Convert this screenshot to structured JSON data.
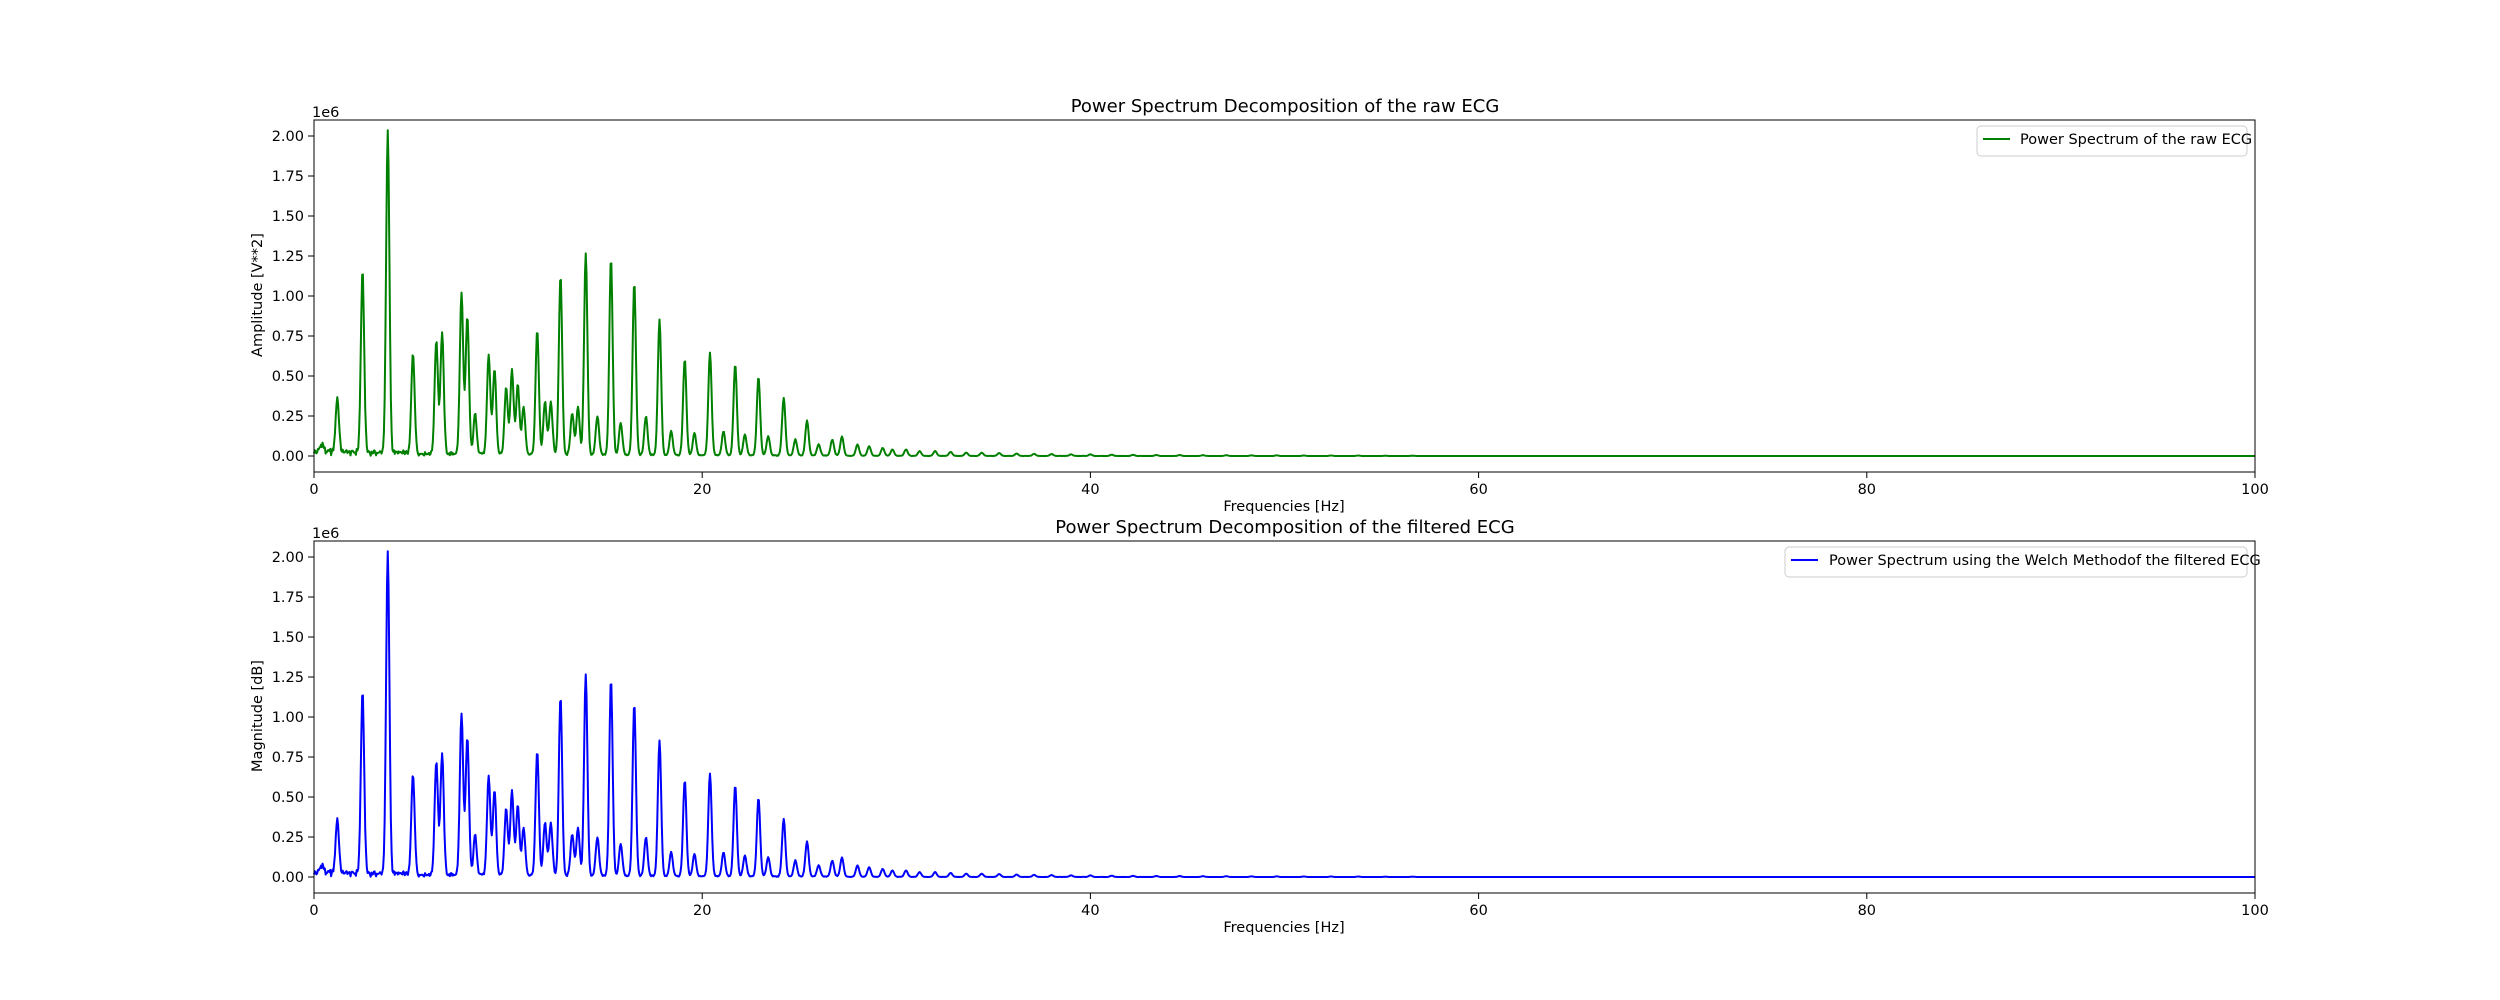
{
  "chart_data": [
    {
      "type": "line",
      "title": "Power Spectrum Decomposition of the raw ECG",
      "xlabel": "Frequencies [Hz]",
      "ylabel": "Amplitude [V**2]",
      "y_offset_label": "1e6",
      "xlim": [
        0,
        100
      ],
      "ylim": [
        -0.1,
        2.1
      ],
      "xticks": [
        0,
        20,
        40,
        60,
        80,
        100
      ],
      "xtick_labels": [
        "0",
        "20",
        "40",
        "60",
        "80",
        "100"
      ],
      "yticks": [
        0,
        0.25,
        0.5,
        0.75,
        1.0,
        1.25,
        1.5,
        1.75,
        2.0
      ],
      "ytick_labels": [
        "0.00",
        "0.25",
        "0.50",
        "0.75",
        "1.00",
        "1.25",
        "1.50",
        "1.75",
        "2.00"
      ],
      "grid": false,
      "legend_position": "top-right",
      "color": "#008000",
      "series": [
        {
          "name": "Power Spectrum of the raw ECG",
          "peaks": [
            [
              0.4,
              0.05
            ],
            [
              1.2,
              0.34
            ],
            [
              2.5,
              1.13
            ],
            [
              3.8,
              2.01
            ],
            [
              5.1,
              0.63
            ],
            [
              6.3,
              0.71
            ],
            [
              6.6,
              0.76
            ],
            [
              7.6,
              1.01
            ],
            [
              7.9,
              0.86
            ],
            [
              8.3,
              0.25
            ],
            [
              9.0,
              0.62
            ],
            [
              9.3,
              0.53
            ],
            [
              9.9,
              0.42
            ],
            [
              10.2,
              0.53
            ],
            [
              10.5,
              0.44
            ],
            [
              10.8,
              0.3
            ],
            [
              11.5,
              0.78
            ],
            [
              11.9,
              0.33
            ],
            [
              12.2,
              0.33
            ],
            [
              12.7,
              1.12
            ],
            [
              13.3,
              0.26
            ],
            [
              13.6,
              0.3
            ],
            [
              14.0,
              1.26
            ],
            [
              14.6,
              0.24
            ],
            [
              15.3,
              1.23
            ],
            [
              15.8,
              0.2
            ],
            [
              16.5,
              1.08
            ],
            [
              17.1,
              0.24
            ],
            [
              17.8,
              0.85
            ],
            [
              18.4,
              0.15
            ],
            [
              19.1,
              0.6
            ],
            [
              19.6,
              0.14
            ],
            [
              20.4,
              0.64
            ],
            [
              21.1,
              0.15
            ],
            [
              21.7,
              0.57
            ],
            [
              22.2,
              0.13
            ],
            [
              22.9,
              0.49
            ],
            [
              23.4,
              0.12
            ],
            [
              24.2,
              0.36
            ],
            [
              24.8,
              0.1
            ],
            [
              25.4,
              0.22
            ],
            [
              26.0,
              0.07
            ],
            [
              26.7,
              0.1
            ],
            [
              27.2,
              0.12
            ],
            [
              28.0,
              0.07
            ],
            [
              28.6,
              0.06
            ],
            [
              29.3,
              0.05
            ],
            [
              29.8,
              0.04
            ],
            [
              30.5,
              0.04
            ],
            [
              31.2,
              0.03
            ],
            [
              32.0,
              0.03
            ],
            [
              32.8,
              0.025
            ],
            [
              33.6,
              0.02
            ],
            [
              34.4,
              0.02
            ],
            [
              35.3,
              0.018
            ],
            [
              36.2,
              0.015
            ],
            [
              37.1,
              0.013
            ],
            [
              38.0,
              0.012
            ],
            [
              39.0,
              0.01
            ],
            [
              40.0,
              0.01
            ],
            [
              41.1,
              0.008
            ],
            [
              42.2,
              0.007
            ],
            [
              43.4,
              0.006
            ],
            [
              44.6,
              0.006
            ],
            [
              45.8,
              0.005
            ],
            [
              47.0,
              0.005
            ],
            [
              48.3,
              0.004
            ],
            [
              49.6,
              0.004
            ],
            [
              51.0,
              0.003
            ],
            [
              52.4,
              0.003
            ],
            [
              53.8,
              0.003
            ],
            [
              55.2,
              0.002
            ],
            [
              56.6,
              0.002
            ]
          ]
        }
      ]
    },
    {
      "type": "line",
      "title": "Power Spectrum Decomposition of the filtered ECG",
      "xlabel": "Frequencies [Hz]",
      "ylabel": "Magnitude  [dB]",
      "y_offset_label": "1e6",
      "xlim": [
        0,
        100
      ],
      "ylim": [
        -0.1,
        2.1
      ],
      "xticks": [
        0,
        20,
        40,
        60,
        80,
        100
      ],
      "xtick_labels": [
        "0",
        "20",
        "40",
        "60",
        "80",
        "100"
      ],
      "yticks": [
        0,
        0.25,
        0.5,
        0.75,
        1.0,
        1.25,
        1.5,
        1.75,
        2.0
      ],
      "ytick_labels": [
        "0.00",
        "0.25",
        "0.50",
        "0.75",
        "1.00",
        "1.25",
        "1.50",
        "1.75",
        "2.00"
      ],
      "grid": false,
      "legend_position": "top-right",
      "color": "#0000ff",
      "series": [
        {
          "name": "Power Spectrum using the Welch Methodof the filtered ECG",
          "peaks": [
            [
              0.4,
              0.05
            ],
            [
              1.2,
              0.34
            ],
            [
              2.5,
              1.13
            ],
            [
              3.8,
              2.01
            ],
            [
              5.1,
              0.63
            ],
            [
              6.3,
              0.71
            ],
            [
              6.6,
              0.76
            ],
            [
              7.6,
              1.01
            ],
            [
              7.9,
              0.86
            ],
            [
              8.3,
              0.25
            ],
            [
              9.0,
              0.62
            ],
            [
              9.3,
              0.53
            ],
            [
              9.9,
              0.42
            ],
            [
              10.2,
              0.53
            ],
            [
              10.5,
              0.44
            ],
            [
              10.8,
              0.3
            ],
            [
              11.5,
              0.78
            ],
            [
              11.9,
              0.33
            ],
            [
              12.2,
              0.33
            ],
            [
              12.7,
              1.12
            ],
            [
              13.3,
              0.26
            ],
            [
              13.6,
              0.3
            ],
            [
              14.0,
              1.26
            ],
            [
              14.6,
              0.24
            ],
            [
              15.3,
              1.23
            ],
            [
              15.8,
              0.2
            ],
            [
              16.5,
              1.08
            ],
            [
              17.1,
              0.24
            ],
            [
              17.8,
              0.85
            ],
            [
              18.4,
              0.15
            ],
            [
              19.1,
              0.6
            ],
            [
              19.6,
              0.14
            ],
            [
              20.4,
              0.64
            ],
            [
              21.1,
              0.15
            ],
            [
              21.7,
              0.57
            ],
            [
              22.2,
              0.13
            ],
            [
              22.9,
              0.49
            ],
            [
              23.4,
              0.12
            ],
            [
              24.2,
              0.36
            ],
            [
              24.8,
              0.1
            ],
            [
              25.4,
              0.22
            ],
            [
              26.0,
              0.07
            ],
            [
              26.7,
              0.1
            ],
            [
              27.2,
              0.12
            ],
            [
              28.0,
              0.07
            ],
            [
              28.6,
              0.06
            ],
            [
              29.3,
              0.05
            ],
            [
              29.8,
              0.04
            ],
            [
              30.5,
              0.04
            ],
            [
              31.2,
              0.03
            ],
            [
              32.0,
              0.03
            ],
            [
              32.8,
              0.025
            ],
            [
              33.6,
              0.02
            ],
            [
              34.4,
              0.02
            ],
            [
              35.3,
              0.018
            ],
            [
              36.2,
              0.015
            ],
            [
              37.1,
              0.013
            ],
            [
              38.0,
              0.012
            ],
            [
              39.0,
              0.01
            ],
            [
              40.0,
              0.01
            ],
            [
              41.1,
              0.008
            ],
            [
              42.2,
              0.007
            ],
            [
              43.4,
              0.006
            ],
            [
              44.6,
              0.006
            ],
            [
              45.8,
              0.005
            ],
            [
              47.0,
              0.005
            ],
            [
              48.3,
              0.004
            ],
            [
              49.6,
              0.004
            ],
            [
              51.0,
              0.003
            ],
            [
              52.4,
              0.003
            ],
            [
              53.8,
              0.003
            ],
            [
              55.2,
              0.002
            ],
            [
              56.6,
              0.002
            ]
          ]
        }
      ]
    }
  ]
}
